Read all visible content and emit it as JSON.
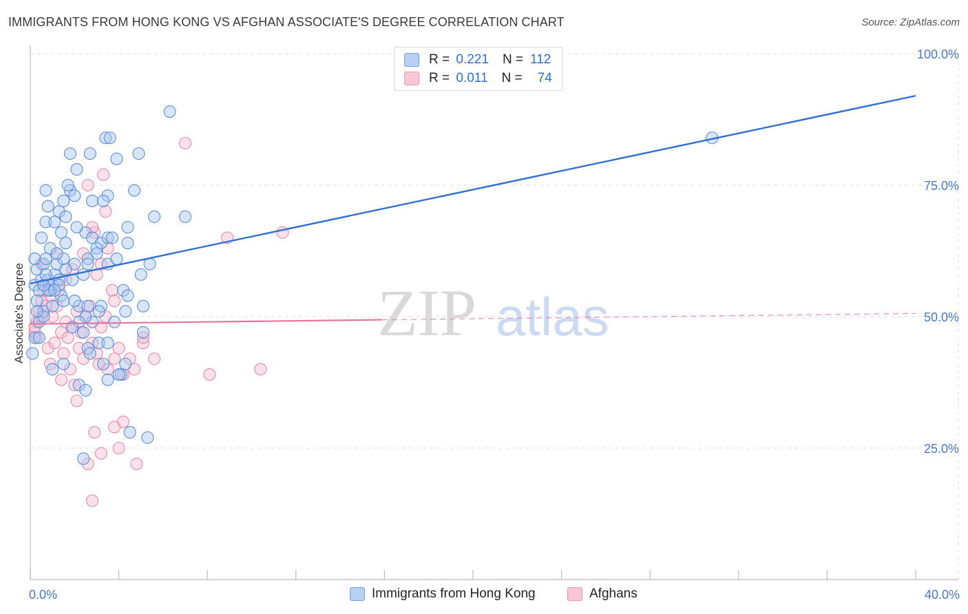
{
  "header": {
    "title": "IMMIGRANTS FROM HONG KONG VS AFGHAN ASSOCIATE'S DEGREE CORRELATION CHART",
    "source": "Source: ZipAtlas.com"
  },
  "legend": {
    "series1": {
      "r_label": "R =",
      "r_value": "0.221",
      "n_label": "N =",
      "n_value": "112"
    },
    "series2": {
      "r_label": "R =",
      "r_value": "0.011",
      "n_label": "N =",
      "n_value": "74"
    }
  },
  "watermark": {
    "part1": "ZIP",
    "part2": "atlas"
  },
  "colors": {
    "blue_fill": "#a8c6f0",
    "blue_stroke": "#5b8fdc",
    "blue_line": "#2f6fd1",
    "pink_fill": "#f6bdd0",
    "pink_stroke": "#ea8aa8",
    "pink_line": "#e8729a",
    "grid": "#dedede",
    "tick_text": "#4a78c9"
  },
  "chart_data": {
    "type": "scatter",
    "title": "IMMIGRANTS FROM HONG KONG VS AFGHAN ASSOCIATE'S DEGREE CORRELATION CHART",
    "xlabel": "",
    "ylabel": "Associate's Degree",
    "xlim": [
      0,
      40
    ],
    "ylim": [
      0,
      100
    ],
    "x_tick_labels": [
      {
        "value": 0,
        "label": "0.0%"
      },
      {
        "value": 40,
        "label": "40.0%"
      }
    ],
    "y_tick_labels": [
      {
        "value": 25,
        "label": "25.0%"
      },
      {
        "value": 50,
        "label": "50.0%"
      },
      {
        "value": 75,
        "label": "75.0%"
      },
      {
        "value": 100,
        "label": "100.0%"
      }
    ],
    "legend_position": "top-center",
    "series": [
      {
        "name": "Immigrants from Hong Kong",
        "color": "blue",
        "r": 0.221,
        "n": 112,
        "trend": {
          "x0": 0,
          "y0": 56.3,
          "x1": 40,
          "y1": 92.0,
          "style": "solid"
        },
        "points": [
          [
            0.2,
            56
          ],
          [
            0.3,
            59
          ],
          [
            0.2,
            61
          ],
          [
            0.4,
            55
          ],
          [
            0.5,
            57
          ],
          [
            0.6,
            60
          ],
          [
            0.3,
            53
          ],
          [
            0.4,
            49
          ],
          [
            0.2,
            46
          ],
          [
            0.1,
            43
          ],
          [
            0.7,
            61
          ],
          [
            0.8,
            57
          ],
          [
            0.9,
            55
          ],
          [
            0.6,
            51
          ],
          [
            1.0,
            56
          ],
          [
            1.1,
            58
          ],
          [
            0.9,
            63
          ],
          [
            1.2,
            60
          ],
          [
            1.3,
            57
          ],
          [
            1.4,
            54
          ],
          [
            0.5,
            65
          ],
          [
            0.7,
            68
          ],
          [
            0.8,
            71
          ],
          [
            1.1,
            68
          ],
          [
            1.3,
            70
          ],
          [
            1.5,
            72
          ],
          [
            1.6,
            69
          ],
          [
            1.4,
            66
          ],
          [
            1.8,
            74
          ],
          [
            2.0,
            73
          ],
          [
            0.7,
            74
          ],
          [
            1.7,
            75
          ],
          [
            2.1,
            78
          ],
          [
            1.8,
            81
          ],
          [
            2.7,
            81
          ],
          [
            3.4,
            84
          ],
          [
            3.6,
            84
          ],
          [
            4.9,
            81
          ],
          [
            3.9,
            80
          ],
          [
            6.3,
            89
          ],
          [
            4.7,
            74
          ],
          [
            3.5,
            73
          ],
          [
            2.8,
            72
          ],
          [
            3.3,
            72
          ],
          [
            2.5,
            66
          ],
          [
            2.8,
            65
          ],
          [
            3.2,
            64
          ],
          [
            3.0,
            63
          ],
          [
            3.5,
            65
          ],
          [
            3.7,
            65
          ],
          [
            4.4,
            67
          ],
          [
            4.4,
            64
          ],
          [
            5.6,
            69
          ],
          [
            7.0,
            69
          ],
          [
            2.6,
            61
          ],
          [
            2.0,
            60
          ],
          [
            1.6,
            59
          ],
          [
            1.5,
            61
          ],
          [
            2.4,
            58
          ],
          [
            1.9,
            57
          ],
          [
            3.5,
            60
          ],
          [
            4.2,
            55
          ],
          [
            3.2,
            52
          ],
          [
            2.2,
            52
          ],
          [
            1.5,
            53
          ],
          [
            1.3,
            56
          ],
          [
            0.8,
            55
          ],
          [
            1.1,
            55
          ],
          [
            2.0,
            53
          ],
          [
            2.6,
            52
          ],
          [
            3.1,
            51
          ],
          [
            3.8,
            49
          ],
          [
            4.3,
            51
          ],
          [
            2.8,
            49
          ],
          [
            2.5,
            50
          ],
          [
            2.2,
            49
          ],
          [
            1.9,
            48
          ],
          [
            1.0,
            52
          ],
          [
            0.6,
            50
          ],
          [
            0.3,
            51
          ],
          [
            0.6,
            56
          ],
          [
            0.7,
            58
          ],
          [
            1.2,
            62
          ],
          [
            1.6,
            64
          ],
          [
            2.1,
            67
          ],
          [
            2.6,
            60
          ],
          [
            3.0,
            62
          ],
          [
            3.9,
            61
          ],
          [
            5.0,
            58
          ],
          [
            5.4,
            60
          ],
          [
            4.4,
            54
          ],
          [
            5.1,
            52
          ],
          [
            2.4,
            47
          ],
          [
            2.6,
            44
          ],
          [
            3.1,
            45
          ],
          [
            3.5,
            45
          ],
          [
            4.3,
            41
          ],
          [
            5.1,
            47
          ],
          [
            1.0,
            40
          ],
          [
            2.7,
            43
          ],
          [
            3.3,
            41
          ],
          [
            3.5,
            38
          ],
          [
            4.1,
            39
          ],
          [
            2.2,
            37
          ],
          [
            2.5,
            36
          ],
          [
            4.0,
            39
          ],
          [
            4.5,
            28
          ],
          [
            5.3,
            27
          ],
          [
            2.4,
            23
          ],
          [
            1.5,
            41
          ],
          [
            0.4,
            46
          ],
          [
            30.8,
            84
          ]
        ]
      },
      {
        "name": "Afghans",
        "color": "pink",
        "r": 0.011,
        "n": 74,
        "trend": {
          "x0": 0,
          "y0": 48.6,
          "x1": 15.9,
          "y1": 49.4,
          "x_dash_end": 40,
          "y_dash_end": 50.6,
          "style": "solid-then-dashed"
        },
        "points": [
          [
            0.2,
            47
          ],
          [
            0.3,
            49
          ],
          [
            0.4,
            51
          ],
          [
            0.5,
            53
          ],
          [
            0.6,
            55
          ],
          [
            0.3,
            46
          ],
          [
            0.2,
            48
          ],
          [
            0.5,
            50
          ],
          [
            0.7,
            52
          ],
          [
            0.9,
            54
          ],
          [
            1.0,
            50
          ],
          [
            1.2,
            52
          ],
          [
            0.8,
            44
          ],
          [
            1.1,
            45
          ],
          [
            1.4,
            47
          ],
          [
            1.6,
            49
          ],
          [
            1.7,
            46
          ],
          [
            1.9,
            48
          ],
          [
            2.1,
            51
          ],
          [
            2.3,
            47
          ],
          [
            2.5,
            50
          ],
          [
            2.7,
            52
          ],
          [
            2.2,
            44
          ],
          [
            2.4,
            42
          ],
          [
            2.8,
            45
          ],
          [
            3.0,
            43
          ],
          [
            3.2,
            48
          ],
          [
            3.4,
            50
          ],
          [
            3.1,
            41
          ],
          [
            3.5,
            40
          ],
          [
            3.8,
            42
          ],
          [
            4.0,
            44
          ],
          [
            4.2,
            39
          ],
          [
            4.5,
            42
          ],
          [
            4.7,
            40
          ],
          [
            5.1,
            45
          ],
          [
            5.6,
            42
          ],
          [
            0.9,
            41
          ],
          [
            1.8,
            40
          ],
          [
            1.4,
            38
          ],
          [
            2.0,
            37
          ],
          [
            2.1,
            34
          ],
          [
            3.0,
            58
          ],
          [
            3.2,
            60
          ],
          [
            3.5,
            63
          ],
          [
            2.9,
            66
          ],
          [
            3.4,
            70
          ],
          [
            3.3,
            77
          ],
          [
            2.6,
            75
          ],
          [
            3.7,
            55
          ],
          [
            3.8,
            53
          ],
          [
            1.3,
            55
          ],
          [
            1.6,
            57
          ],
          [
            1.9,
            59
          ],
          [
            2.4,
            62
          ],
          [
            1.2,
            62
          ],
          [
            0.9,
            56
          ],
          [
            0.5,
            60
          ],
          [
            2.8,
            67
          ],
          [
            7.0,
            83
          ],
          [
            8.9,
            65
          ],
          [
            11.4,
            66
          ],
          [
            8.1,
            39
          ],
          [
            10.4,
            40
          ],
          [
            5.1,
            46
          ],
          [
            4.2,
            30
          ],
          [
            3.8,
            29
          ],
          [
            2.9,
            28
          ],
          [
            4.0,
            25
          ],
          [
            3.2,
            24
          ],
          [
            4.8,
            22
          ],
          [
            2.6,
            22
          ],
          [
            2.8,
            15
          ],
          [
            1.5,
            43
          ]
        ]
      }
    ]
  },
  "bottom_legend": {
    "series1_label": "Immigrants from Hong Kong",
    "series2_label": "Afghans"
  }
}
